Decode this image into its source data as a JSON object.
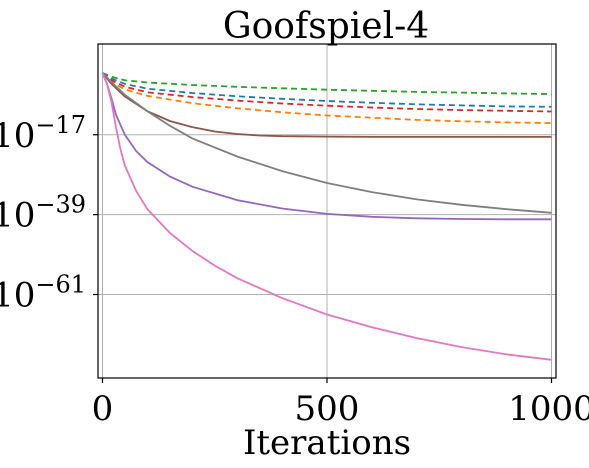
{
  "chart_data": {
    "type": "line",
    "title": "Goofspiel-4",
    "xlabel": "Iterations",
    "ylabel": "",
    "xlim": [
      -10,
      1010
    ],
    "ylim": [
      -84,
      8
    ],
    "y_scale": "log10",
    "grid": true,
    "x_ticks": [
      {
        "value": 0,
        "label": "0"
      },
      {
        "value": 500,
        "label": "500"
      },
      {
        "value": 1000,
        "label": "1000"
      }
    ],
    "y_ticks": [
      {
        "value": -17,
        "base": "10",
        "exp": "−17"
      },
      {
        "value": -39,
        "base": "10",
        "exp": "−39"
      },
      {
        "value": -61,
        "base": "10",
        "exp": "−61"
      }
    ],
    "series": [
      {
        "color": "#2ca02c",
        "dash": true,
        "points": [
          [
            0,
            0
          ],
          [
            20,
            -1
          ],
          [
            50,
            -2
          ],
          [
            100,
            -2.6
          ],
          [
            200,
            -3.3
          ],
          [
            300,
            -3.8
          ],
          [
            400,
            -4.2
          ],
          [
            500,
            -4.6
          ],
          [
            600,
            -4.9
          ],
          [
            700,
            -5.2
          ],
          [
            800,
            -5.4
          ],
          [
            900,
            -5.6
          ],
          [
            1000,
            -5.8
          ]
        ]
      },
      {
        "color": "#1f77b4",
        "dash": true,
        "points": [
          [
            0,
            0
          ],
          [
            20,
            -1.5
          ],
          [
            50,
            -3
          ],
          [
            100,
            -4.3
          ],
          [
            200,
            -5.5
          ],
          [
            300,
            -6.4
          ],
          [
            400,
            -7.1
          ],
          [
            500,
            -7.7
          ],
          [
            600,
            -8.2
          ],
          [
            700,
            -8.6
          ],
          [
            800,
            -8.9
          ],
          [
            900,
            -9.2
          ],
          [
            1000,
            -9.3
          ]
        ]
      },
      {
        "color": "#d62728",
        "dash": true,
        "points": [
          [
            0,
            0
          ],
          [
            20,
            -2
          ],
          [
            50,
            -3.8
          ],
          [
            100,
            -5.3
          ],
          [
            200,
            -6.6
          ],
          [
            300,
            -7.6
          ],
          [
            400,
            -8.4
          ],
          [
            500,
            -9
          ],
          [
            600,
            -9.5
          ],
          [
            700,
            -9.9
          ],
          [
            800,
            -10.2
          ],
          [
            900,
            -10.4
          ],
          [
            1000,
            -10.6
          ]
        ]
      },
      {
        "color": "#ff7f0e",
        "dash": true,
        "points": [
          [
            0,
            0
          ],
          [
            20,
            -2.5
          ],
          [
            50,
            -4.5
          ],
          [
            100,
            -6.3
          ],
          [
            200,
            -8.3
          ],
          [
            300,
            -9.7
          ],
          [
            400,
            -10.8
          ],
          [
            500,
            -11.7
          ],
          [
            600,
            -12.3
          ],
          [
            700,
            -12.9
          ],
          [
            800,
            -13.3
          ],
          [
            900,
            -13.6
          ],
          [
            1000,
            -13.8
          ]
        ]
      },
      {
        "color": "#8c564b",
        "dash": false,
        "points": [
          [
            0,
            0
          ],
          [
            20,
            -3
          ],
          [
            50,
            -6.5
          ],
          [
            100,
            -10.5
          ],
          [
            150,
            -13.2
          ],
          [
            200,
            -14.9
          ],
          [
            250,
            -16.1
          ],
          [
            300,
            -16.8
          ],
          [
            350,
            -17.2
          ],
          [
            400,
            -17.4
          ],
          [
            500,
            -17.5
          ],
          [
            600,
            -17.6
          ],
          [
            700,
            -17.6
          ],
          [
            800,
            -17.6
          ],
          [
            900,
            -17.6
          ],
          [
            1000,
            -17.6
          ]
        ]
      },
      {
        "color": "#7f7f7f",
        "dash": false,
        "points": [
          [
            0,
            0
          ],
          [
            20,
            -2.5
          ],
          [
            50,
            -6
          ],
          [
            100,
            -10.5
          ],
          [
            150,
            -14.5
          ],
          [
            200,
            -18
          ],
          [
            300,
            -23
          ],
          [
            400,
            -27
          ],
          [
            500,
            -30.3
          ],
          [
            600,
            -32.8
          ],
          [
            700,
            -34.8
          ],
          [
            800,
            -36.3
          ],
          [
            900,
            -37.5
          ],
          [
            1000,
            -38.5
          ]
        ]
      },
      {
        "color": "#9467bd",
        "dash": false,
        "points": [
          [
            0,
            0
          ],
          [
            10,
            -3
          ],
          [
            20,
            -7
          ],
          [
            30,
            -11.5
          ],
          [
            50,
            -17
          ],
          [
            75,
            -21.5
          ],
          [
            100,
            -24.5
          ],
          [
            150,
            -28.5
          ],
          [
            200,
            -31.3
          ],
          [
            300,
            -35
          ],
          [
            400,
            -37.3
          ],
          [
            500,
            -38.8
          ],
          [
            600,
            -39.6
          ],
          [
            700,
            -40
          ],
          [
            800,
            -40.2
          ],
          [
            900,
            -40.3
          ],
          [
            1000,
            -40.3
          ]
        ]
      },
      {
        "color": "#e377c2",
        "dash": false,
        "points": [
          [
            0,
            0
          ],
          [
            10,
            -3
          ],
          [
            20,
            -8
          ],
          [
            30,
            -15
          ],
          [
            40,
            -21
          ],
          [
            50,
            -25.5
          ],
          [
            75,
            -32.5
          ],
          [
            100,
            -37.5
          ],
          [
            150,
            -44
          ],
          [
            200,
            -49
          ],
          [
            250,
            -53
          ],
          [
            300,
            -56.5
          ],
          [
            400,
            -62
          ],
          [
            500,
            -66.5
          ],
          [
            600,
            -70
          ],
          [
            700,
            -73
          ],
          [
            800,
            -75.5
          ],
          [
            900,
            -77.5
          ],
          [
            1000,
            -79
          ]
        ]
      }
    ]
  }
}
